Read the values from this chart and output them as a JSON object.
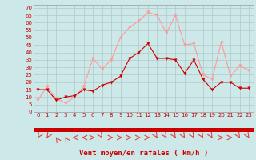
{
  "hours": [
    0,
    1,
    2,
    3,
    4,
    5,
    6,
    7,
    8,
    9,
    10,
    11,
    12,
    13,
    14,
    15,
    16,
    17,
    18,
    19,
    20,
    21,
    22,
    23
  ],
  "wind_avg": [
    15,
    15,
    8,
    10,
    11,
    15,
    14,
    18,
    20,
    24,
    36,
    40,
    46,
    36,
    36,
    35,
    26,
    35,
    22,
    15,
    20,
    20,
    16,
    16
  ],
  "wind_gust": [
    8,
    17,
    9,
    6,
    10,
    17,
    36,
    29,
    35,
    50,
    57,
    61,
    67,
    65,
    53,
    65,
    45,
    46,
    25,
    22,
    47,
    24,
    31,
    28
  ],
  "xlabel": "Vent moyen/en rafales ( km/h )",
  "ylabel_ticks": [
    0,
    5,
    10,
    15,
    20,
    25,
    30,
    35,
    40,
    45,
    50,
    55,
    60,
    65,
    70
  ],
  "ylim": [
    0,
    72
  ],
  "xlim": [
    -0.5,
    23.5
  ],
  "bg_color": "#cce8e8",
  "grid_color": "#b0c8c8",
  "avg_color": "#cc0000",
  "gust_color": "#ff9999",
  "xlabel_color": "#cc0000",
  "tick_color": "#cc0000",
  "red_bar_color": "#cc0000",
  "arrow_color": "#dd4444"
}
